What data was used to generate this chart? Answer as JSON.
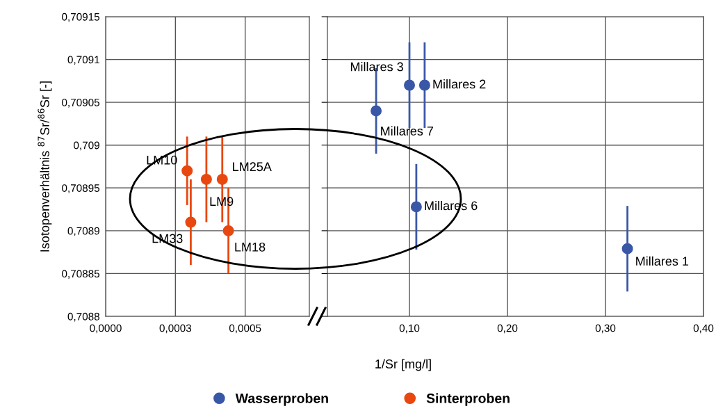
{
  "chart_data": [
    {
      "type": "scatter",
      "ylabel": "Isotopenverhältnis $^{87}$Sr/$^{86}$Sr [-]",
      "series": [
        {
          "name": "Sinterproben",
          "color": "#e8470f",
          "x": [
            0.000292,
            0.000305,
            0.000361,
            0.000418,
            0.00044
          ],
          "values": [
            0.70897,
            0.70891,
            0.70896,
            0.70896,
            0.7089
          ],
          "errors": [
            4e-05,
            5e-05,
            5e-05,
            5e-05,
            5e-05
          ]
        }
      ],
      "annotations": [
        {
          "text": "LM10",
          "x": 0.000292,
          "y": 0.70897
        },
        {
          "text": "LM33",
          "x": 0.000305,
          "y": 0.70891
        },
        {
          "text": "LM9",
          "x": 0.000361,
          "y": 0.70896
        },
        {
          "text": "LM25A",
          "x": 0.000418,
          "y": 0.70896
        },
        {
          "text": "LM18",
          "x": 0.00044,
          "y": 0.7089
        }
      ],
      "xlim": [
        0,
        0.00073
      ],
      "xticks": [
        {
          "value": 0,
          "label": "0,0000"
        },
        {
          "value": 0.00025,
          "label": "0,0003"
        },
        {
          "value": 0.0005,
          "label": "0,0005"
        }
      ],
      "ylim": [
        0.7088,
        0.70915
      ],
      "yticks": [
        {
          "value": 0.7088,
          "label": "0,7088"
        },
        {
          "value": 0.70885,
          "label": "0,70885"
        },
        {
          "value": 0.7089,
          "label": "0,7089"
        },
        {
          "value": 0.70895,
          "label": "0,70895"
        },
        {
          "value": 0.709,
          "label": "0,709"
        },
        {
          "value": 0.70905,
          "label": "0,70905"
        },
        {
          "value": 0.7091,
          "label": "0,7091"
        },
        {
          "value": 0.70915,
          "label": "0,70915"
        }
      ],
      "grid": true,
      "marker": "circle",
      "legend": "bottom"
    },
    {
      "type": "scatter",
      "xlabel": "1/Sr [mg/l]",
      "series": [
        {
          "name": "Wasserproben",
          "color": "#3a57a7",
          "x": [
            0.1,
            0.1155,
            0.066,
            0.107,
            0.3224
          ],
          "values": [
            0.70907,
            0.70907,
            0.70904,
            0.708928,
            0.708879
          ],
          "errors": [
            5e-05,
            5e-05,
            5e-05,
            5e-05,
            5e-05
          ]
        }
      ],
      "annotations": [
        {
          "text": "Millares 3",
          "x": 0.1,
          "y": 0.70907
        },
        {
          "text": "Millares 2",
          "x": 0.1155,
          "y": 0.70907
        },
        {
          "text": "Millares 7",
          "x": 0.066,
          "y": 0.70904
        },
        {
          "text": "Millares 6",
          "x": 0.107,
          "y": 0.708928
        },
        {
          "text": "Millares 1",
          "x": 0.3224,
          "y": 0.708879
        }
      ],
      "xlim": [
        0.0163,
        0.4
      ],
      "xticks": [
        {
          "value": 0.1,
          "label": "0,10"
        },
        {
          "value": 0.2,
          "label": "0,20"
        },
        {
          "value": 0.3,
          "label": "0,30"
        },
        {
          "value": 0.4,
          "label": "0,40"
        }
      ],
      "ylim": [
        0.7088,
        0.70915
      ],
      "yticks": [
        0.7088,
        0.70885,
        0.7089,
        0.70895,
        0.709,
        0.70905,
        0.7091,
        0.70915
      ],
      "tick_labels": "x",
      "grid": true,
      "marker": "circle",
      "legend": "bottom"
    }
  ]
}
